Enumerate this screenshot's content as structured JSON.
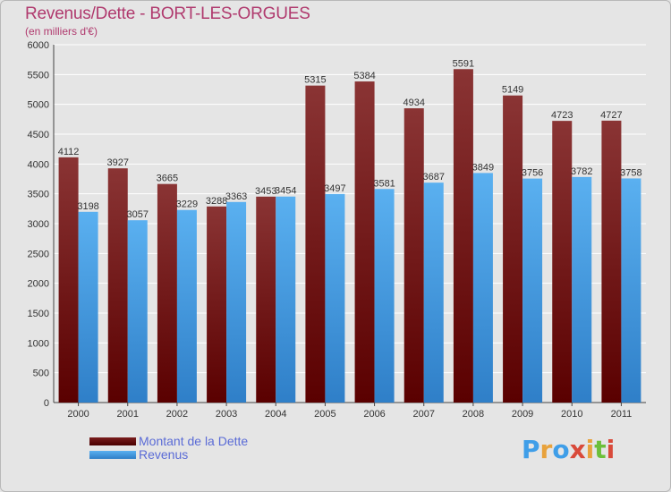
{
  "chart_data": {
    "type": "bar",
    "title": "Revenus/Dette - BORT-LES-ORGUES",
    "subtitle": "(en milliers d'€)",
    "categories": [
      "2000",
      "2001",
      "2002",
      "2003",
      "2004",
      "2005",
      "2006",
      "2007",
      "2008",
      "2009",
      "2010",
      "2011"
    ],
    "series": [
      {
        "name": "Montant de la Dette",
        "color": "#7a1e1e",
        "values": [
          4112,
          3927,
          3665,
          3288,
          3453,
          5315,
          5384,
          4934,
          5591,
          5149,
          4723,
          4727
        ]
      },
      {
        "name": "Revenus",
        "color": "#3f9ee8",
        "values": [
          3198,
          3057,
          3229,
          3363,
          3454,
          3497,
          3581,
          3687,
          3849,
          3756,
          3782,
          3758
        ]
      }
    ],
    "ylim": [
      0,
      6000
    ],
    "yticks": [
      0,
      500,
      1000,
      1500,
      2000,
      2500,
      3000,
      3500,
      4000,
      4500,
      5000,
      5500,
      6000
    ],
    "grid": true,
    "legend_position": "bottom-left"
  },
  "logo": {
    "text": "Proxiti",
    "letters": [
      "P",
      "r",
      "o",
      "x",
      "i",
      "t",
      "i"
    ],
    "colors": [
      "#3f9ee8",
      "#e8a23c",
      "#3f9ee8",
      "#d94a3a",
      "#e8a23c",
      "#6cbf3a",
      "#d94a3a"
    ]
  }
}
